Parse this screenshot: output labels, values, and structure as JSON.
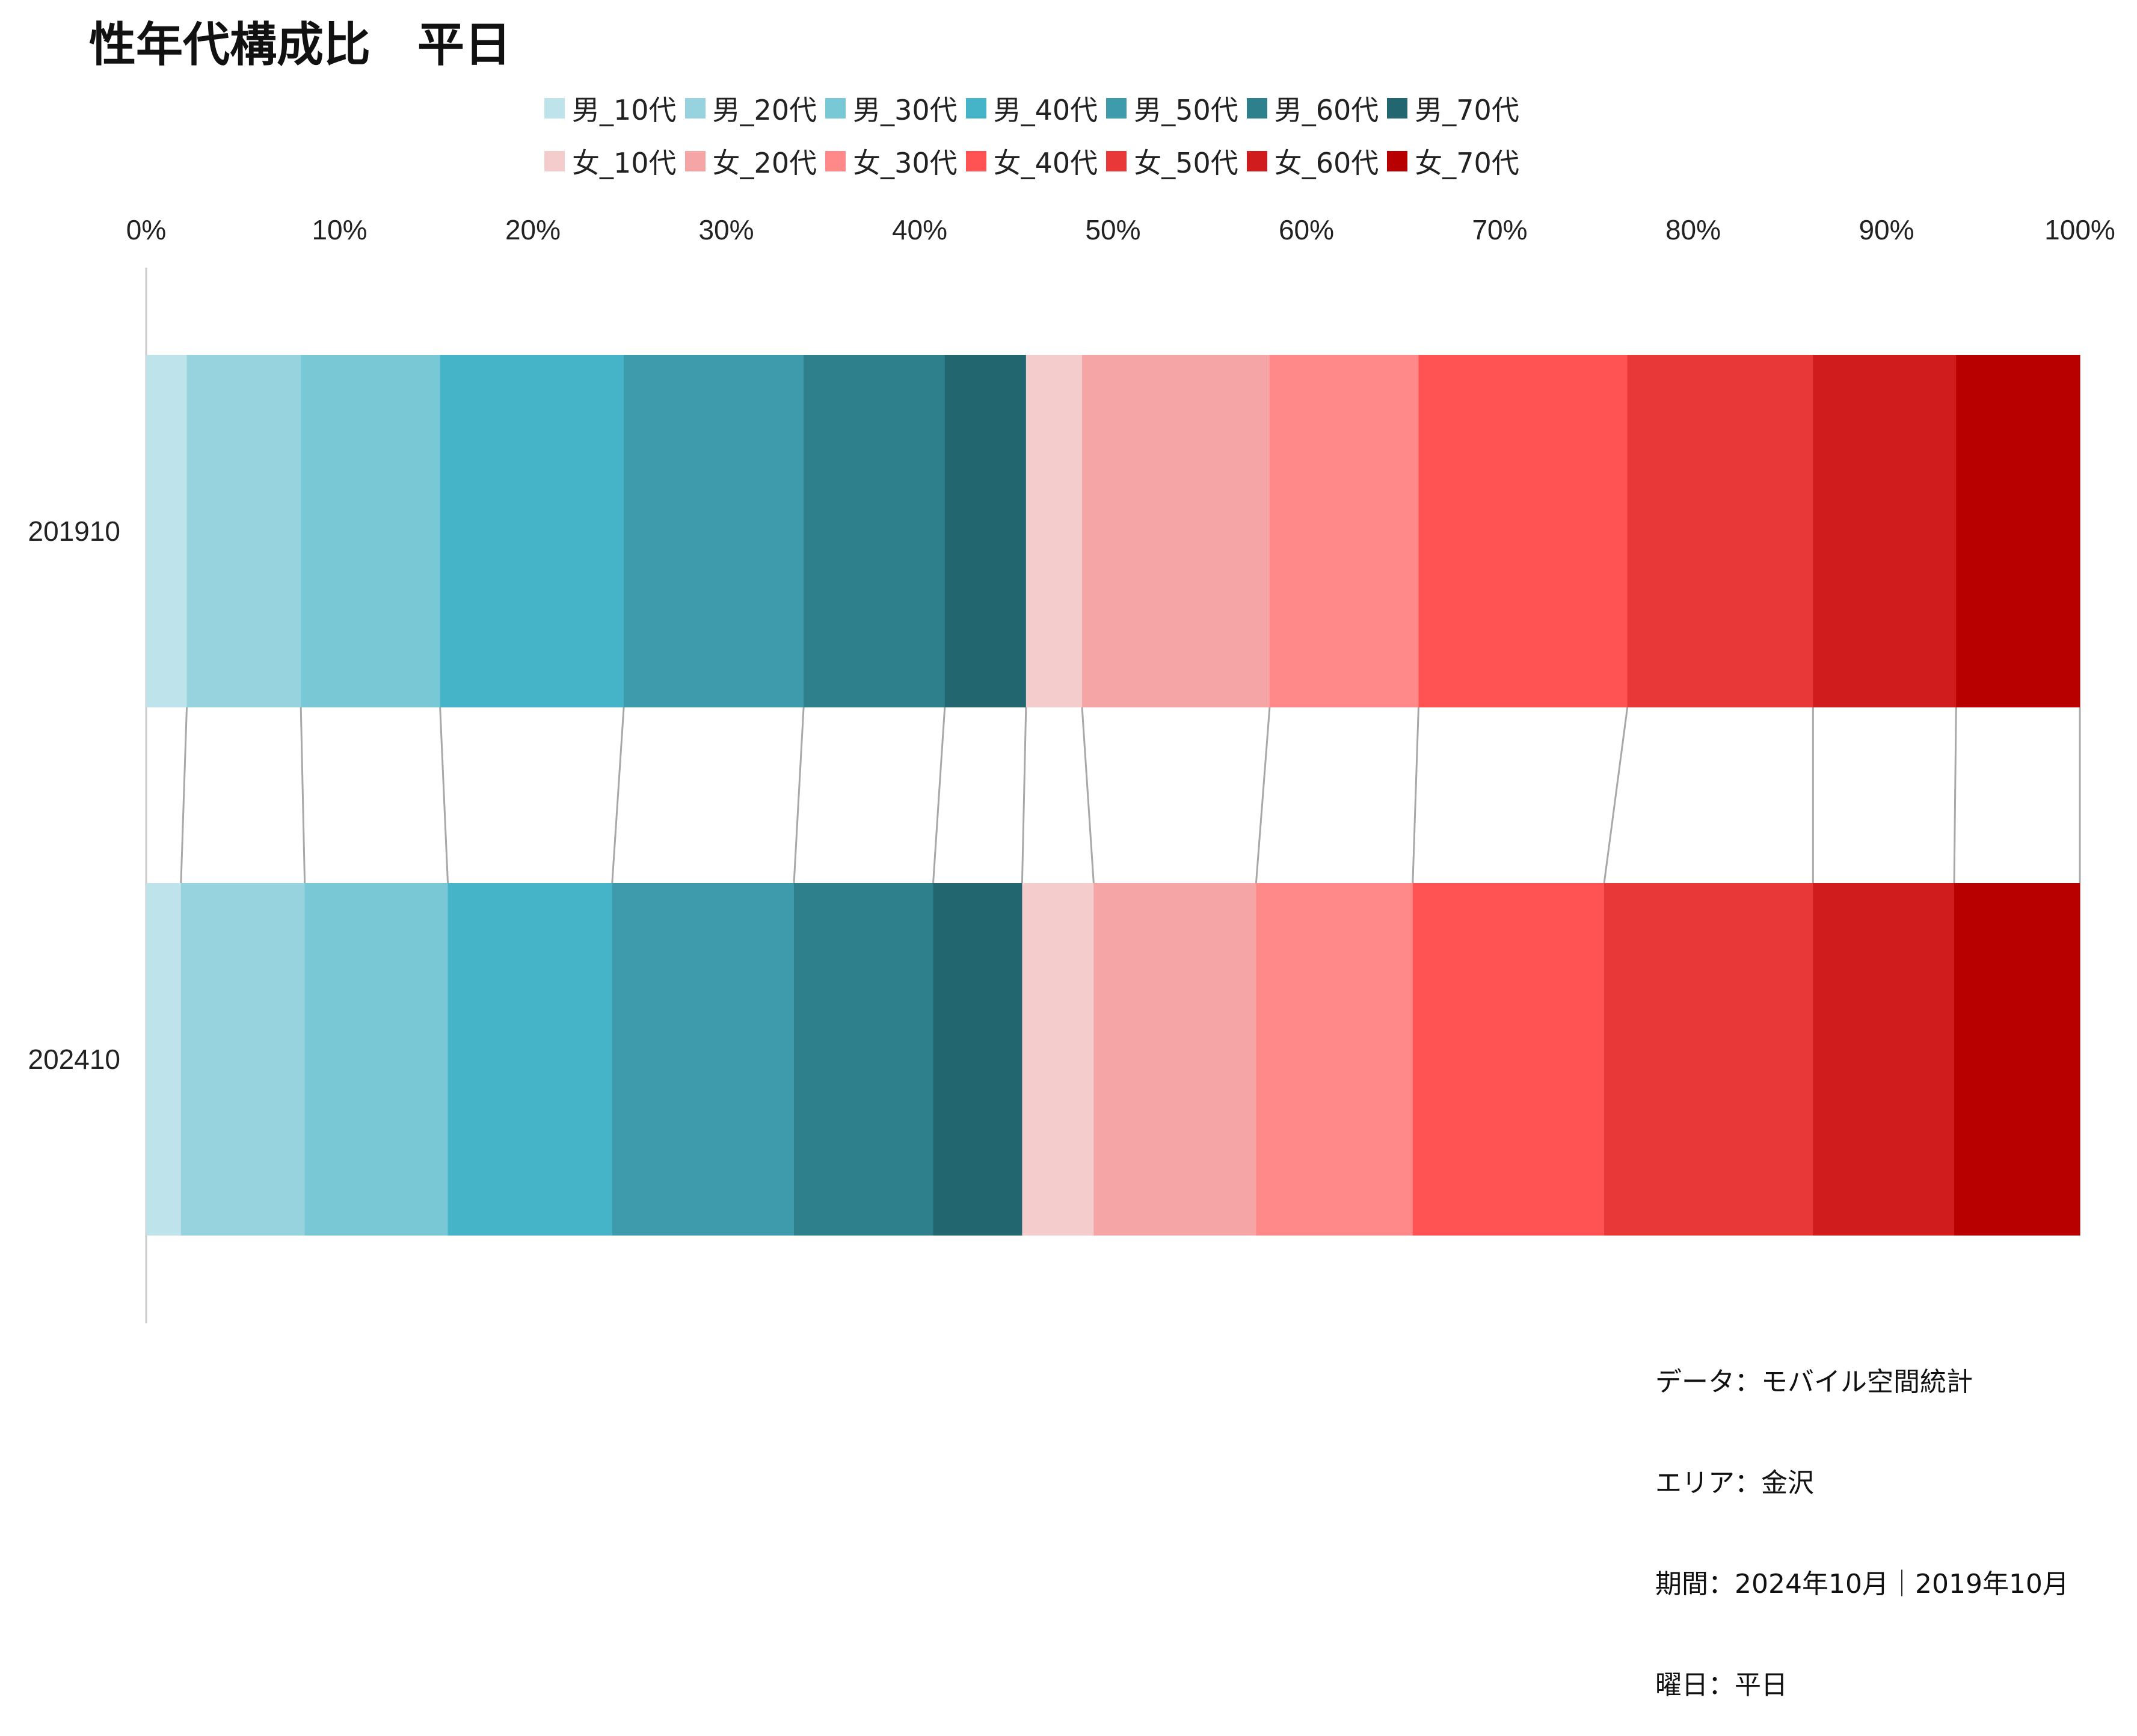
{
  "title": "性年代構成比　平日",
  "chart_data": {
    "type": "bar",
    "orientation": "horizontal",
    "stacked": "percent",
    "categories": [
      "201910",
      "202410"
    ],
    "series": [
      {
        "name": "男_10代",
        "color": "#bfe3eb",
        "values": [
          2.1,
          1.8
        ]
      },
      {
        "name": "男_20代",
        "color": "#96d3de",
        "values": [
          5.9,
          6.4
        ]
      },
      {
        "name": "男_30代",
        "color": "#79c8d5",
        "values": [
          7.2,
          7.4
        ]
      },
      {
        "name": "男_40代",
        "color": "#46b4c8",
        "values": [
          9.5,
          8.5
        ]
      },
      {
        "name": "男_50代",
        "color": "#3d9bac",
        "values": [
          9.3,
          9.4
        ]
      },
      {
        "name": "男_60代",
        "color": "#2e808c",
        "values": [
          7.3,
          7.2
        ]
      },
      {
        "name": "男_70代",
        "color": "#226670",
        "values": [
          4.2,
          4.6
        ]
      },
      {
        "name": "女_10代",
        "color": "#f4cccc",
        "values": [
          2.9,
          3.7
        ]
      },
      {
        "name": "女_20代",
        "color": "#f5a5a5",
        "values": [
          9.7,
          8.4
        ]
      },
      {
        "name": "女_30代",
        "color": "#ff8888",
        "values": [
          7.7,
          8.1
        ]
      },
      {
        "name": "女_40代",
        "color": "#ff5353",
        "values": [
          10.8,
          9.9
        ]
      },
      {
        "name": "女_50代",
        "color": "#e83838",
        "values": [
          9.6,
          10.8
        ]
      },
      {
        "name": "女_60代",
        "color": "#d01c1c",
        "values": [
          7.4,
          7.3
        ]
      },
      {
        "name": "女_70代",
        "color": "#b80000",
        "values": [
          6.4,
          6.5
        ]
      }
    ],
    "xlim": [
      0,
      100
    ],
    "x_ticks": [
      "0%",
      "10%",
      "20%",
      "30%",
      "40%",
      "50%",
      "60%",
      "70%",
      "80%",
      "90%",
      "100%"
    ],
    "legend_position": "top",
    "connector_lines": true,
    "grid": false
  },
  "info": {
    "data_source": "データ：モバイル空間統計",
    "area": "エリア：金沢",
    "period": "期間：2024年10月｜2019年10月",
    "weekday": "曜日：平日"
  }
}
